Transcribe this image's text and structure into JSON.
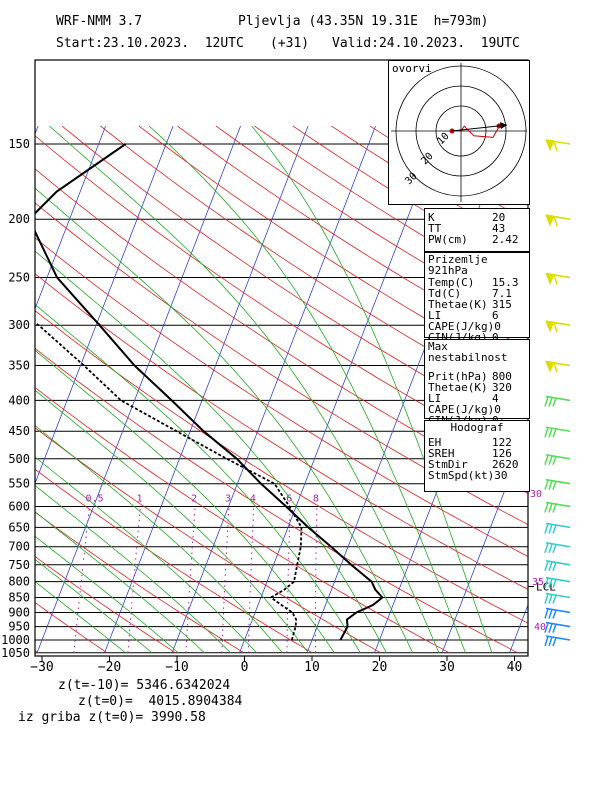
{
  "header": {
    "model": "WRF-NMM 3.7",
    "station": "Pljevlja (43.35N 19.31E  h=793m)",
    "start": "Start:23.10.2023.  12UTC",
    "offset": "(+31)",
    "valid": "Valid:24.10.2023.  19UTC"
  },
  "footer": {
    "line1": "z(t=-10)= 5346.6342024",
    "line2": "z(t=0)=  4015.8904384",
    "line3": "iz griba z(t=0)= 3990.58"
  },
  "hodograph": {
    "title": "ovorvi",
    "ring_labels": [
      "10",
      "20",
      "30"
    ]
  },
  "indices": {
    "rows": [
      {
        "name": "K",
        "value": "20"
      },
      {
        "name": "TT",
        "value": "43"
      },
      {
        "name": "PW(cm)",
        "value": "2.42"
      }
    ]
  },
  "surface": {
    "title": "Prizemlje 921hPa",
    "rows": [
      {
        "name": "Temp(C)",
        "value": "15.3"
      },
      {
        "name": "Td(C)",
        "value": "7.1"
      },
      {
        "name": "Thetae(K)",
        "value": "315"
      },
      {
        "name": "LI",
        "value": "6"
      },
      {
        "name": "CAPE(J/kg)",
        "value": "0"
      },
      {
        "name": "CIN(J/kg)",
        "value": "0"
      }
    ]
  },
  "unstable": {
    "title": "Max nestabilnost",
    "rows": [
      {
        "name": "Prit(hPa)",
        "value": "800"
      },
      {
        "name": "Thetae(K)",
        "value": "320"
      },
      {
        "name": "LI",
        "value": "4"
      },
      {
        "name": "CAPE(J/kg)",
        "value": "0"
      },
      {
        "name": "CIN(J/kg)",
        "value": "0"
      }
    ]
  },
  "hodobox": {
    "title": "Hodograf",
    "rows": [
      {
        "name": "EH",
        "value": "122"
      },
      {
        "name": "SREH",
        "value": "126"
      },
      {
        "name": "StmDir",
        "value": "2620"
      },
      {
        "name": "StmSpd(kt)",
        "value": "30"
      }
    ]
  },
  "colors": {
    "temperature": "#000000",
    "isotherm": "#3344cc",
    "dry_adiabat": "#dd2222",
    "moist_adiabat": "#22aa22",
    "mixing_ratio": "#aa22aa",
    "barb_upper": "#dddd00",
    "barb_mid": "#55dd55",
    "barb_low": "#33cccc",
    "barb_sfc": "#2288ff"
  },
  "chart_data": {
    "type": "line",
    "title": "",
    "pressure_ticks": [
      150,
      200,
      250,
      300,
      350,
      400,
      450,
      500,
      550,
      600,
      650,
      700,
      750,
      800,
      850,
      900,
      950,
      1000,
      1050
    ],
    "temp_ticks": [
      -30,
      -20,
      -10,
      0,
      10,
      20,
      30,
      40
    ],
    "temp_range": [
      -30,
      40
    ],
    "pressure_range": [
      150,
      1050
    ],
    "mixing_ratio_labels": [
      "0.5",
      "1",
      "2",
      "3",
      "4",
      "6",
      "8"
    ],
    "mixing_ratio_values": [
      0.5,
      1,
      2,
      3,
      4,
      6,
      8
    ],
    "theta_e_labels": [
      "30",
      "35",
      "40"
    ],
    "lcl_label": "LCL",
    "lcl_pressure": 815,
    "series": [
      {
        "key": "temperature",
        "p": [
          1000,
          950,
          925,
          900,
          875,
          850,
          825,
          800,
          750,
          700,
          650,
          600,
          550,
          500,
          450,
          400,
          350,
          300,
          250,
          200,
          180,
          150
        ],
        "t": [
          14.2,
          14.5,
          14.0,
          15.0,
          17.0,
          18.0,
          16.5,
          15.5,
          11.5,
          7.5,
          3.0,
          -1.5,
          -6.5,
          -11.5,
          -18.0,
          -24.5,
          -32.0,
          -39.5,
          -48.5,
          -56.0,
          -53.5,
          -46.0
        ]
      },
      {
        "key": "dewpoint",
        "p": [
          1000,
          950,
          925,
          900,
          875,
          850,
          825,
          800,
          750,
          700,
          650,
          600,
          550,
          500,
          450,
          400,
          350,
          300,
          250,
          200,
          180,
          150
        ],
        "t": [
          7.0,
          6.8,
          6.5,
          5.5,
          3.5,
          1.5,
          3.0,
          4.0,
          3.5,
          3.0,
          2.0,
          -1.0,
          -4.5,
          -13.0,
          -22.0,
          -32.0,
          -39.5,
          -48.5,
          -64.0,
          -76.0,
          -74.0,
          -62.0
        ]
      }
    ],
    "barbs_pressure": [
      150,
      200,
      250,
      300,
      350,
      400,
      450,
      500,
      550,
      600,
      650,
      700,
      750,
      800,
      850,
      900,
      950,
      1000
    ],
    "hodograph_points": [
      [
        0,
        0
      ],
      [
        0.2,
        -0.3
      ],
      [
        0.8,
        0.3
      ],
      [
        2.0,
        0.4
      ],
      [
        2.4,
        -0.3
      ]
    ]
  }
}
